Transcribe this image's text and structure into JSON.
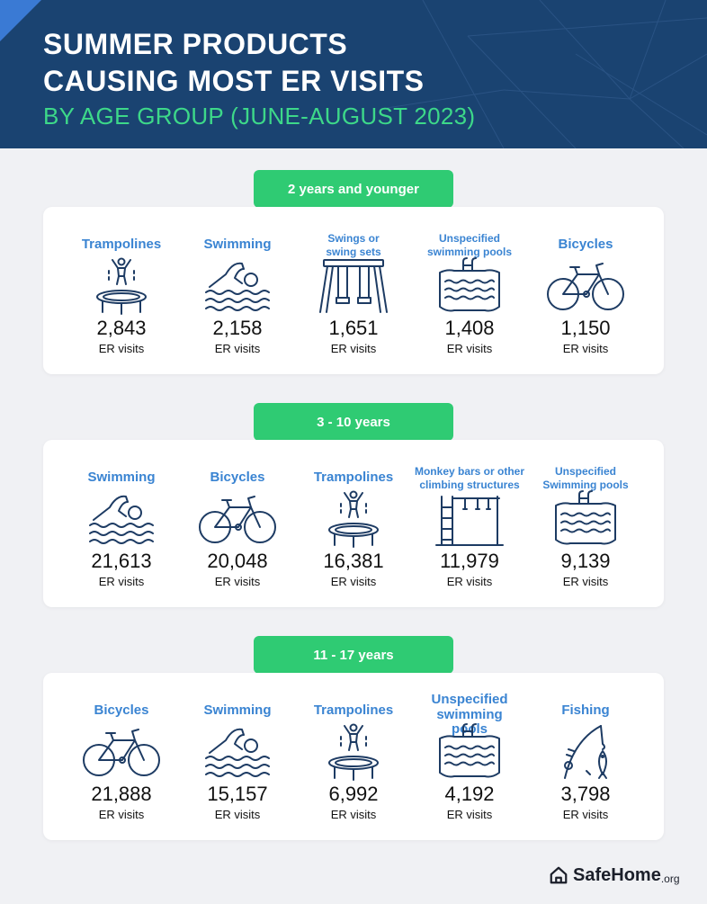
{
  "header": {
    "title_line1": "SUMMER PRODUCTS",
    "title_line2": "CAUSING MOST ER VISITS",
    "subtitle": "BY AGE GROUP (JUNE-AUGUST 2023)"
  },
  "colors": {
    "header_bg": "#1a4371",
    "accent_green": "#2fcb73",
    "label_blue": "#3a84d2",
    "icon_navy": "#1d3b63"
  },
  "groups": [
    {
      "title": "2 years and younger",
      "items": [
        {
          "label": "Trampolines",
          "icon": "trampoline-icon",
          "count": "2,843",
          "unit": "ER visits"
        },
        {
          "label": "Swimming",
          "icon": "swimmer-icon",
          "count": "2,158",
          "unit": "ER visits"
        },
        {
          "label": "Swings or swing sets",
          "icon": "swing-set-icon",
          "count": "1,651",
          "unit": "ER visits"
        },
        {
          "label": "Unspecified swimming pools",
          "icon": "pool-icon",
          "count": "1,408",
          "unit": "ER visits"
        },
        {
          "label": "Bicycles",
          "icon": "bicycle-icon",
          "count": "1,150",
          "unit": "ER visits"
        }
      ]
    },
    {
      "title": "3 - 10 years",
      "items": [
        {
          "label": "Swimming",
          "icon": "swimmer-icon",
          "count": "21,613",
          "unit": "ER visits"
        },
        {
          "label": "Bicycles",
          "icon": "bicycle-icon",
          "count": "20,048",
          "unit": "ER visits"
        },
        {
          "label": "Trampolines",
          "icon": "trampoline-icon",
          "count": "16,381",
          "unit": "ER visits"
        },
        {
          "label": "Monkey bars or other climbing structures",
          "icon": "monkey-bars-icon",
          "count": "11,979",
          "unit": "ER visits"
        },
        {
          "label": "Unspecified Swimming pools",
          "icon": "pool-icon",
          "count": "9,139",
          "unit": "ER visits"
        }
      ]
    },
    {
      "title": "11 - 17 years",
      "items": [
        {
          "label": "Bicycles",
          "icon": "bicycle-icon",
          "count": "21,888",
          "unit": "ER visits"
        },
        {
          "label": "Swimming",
          "icon": "swimmer-icon",
          "count": "15,157",
          "unit": "ER visits"
        },
        {
          "label": "Trampolines",
          "icon": "trampoline-icon",
          "count": "6,992",
          "unit": "ER visits"
        },
        {
          "label": "Unspecified swimming pools",
          "icon": "pool-icon",
          "count": "4,192",
          "unit": "ER visits"
        },
        {
          "label": "Fishing",
          "icon": "fishing-icon",
          "count": "3,798",
          "unit": "ER visits"
        }
      ]
    }
  ],
  "logo": {
    "brand": "SafeHome",
    "tld": ".org",
    "icon": "house-icon"
  }
}
